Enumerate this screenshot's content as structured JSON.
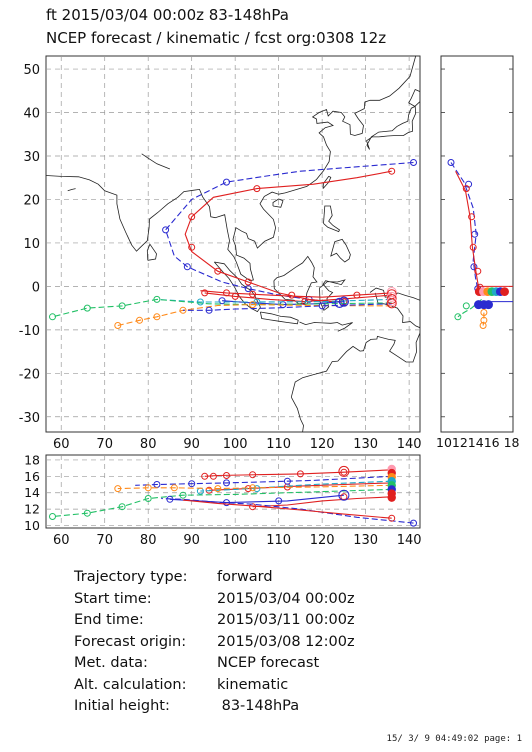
{
  "header": {
    "line1": "ft 2015/03/04 00:00z  83-148hPa",
    "line2": "NCEP forecast / kinematic / fcst org:0308 12z"
  },
  "axes": {
    "map_lon_ticks": [
      60,
      70,
      80,
      90,
      100,
      110,
      120,
      130,
      140
    ],
    "map_lat_ticks": [
      50,
      40,
      30,
      20,
      10,
      0,
      -10,
      -20,
      -30
    ],
    "side_ticks_label": "10121416 18",
    "pressure_ticks": [
      18,
      16,
      14,
      12,
      10
    ]
  },
  "info": [
    {
      "key": "Trajectory type:",
      "value": "forward"
    },
    {
      "key": "Start time:",
      "value": "2015/03/04 00:00z"
    },
    {
      "key": "End time:",
      "value": "2015/03/11 00:00z"
    },
    {
      "key": "Forecast origin:",
      "value": "2015/03/08 12:00z"
    },
    {
      "key": "Met. data:",
      "value": "NCEP forecast"
    },
    {
      "key": "Alt. calculation:",
      "value": "kinematic"
    },
    {
      "key": "Initial height:",
      "value": " 83-148hPa"
    }
  ],
  "footer": "15/ 3/ 9 04:49:02 page: 1",
  "colors": {
    "blue": "#2a2ad0",
    "red": "#e02020",
    "green": "#22c066",
    "orange": "#ff8a1a",
    "cyan": "#20a8c8",
    "pink": "#ff9ab0",
    "grid": "#9a9a9a",
    "coast": "#222222"
  },
  "trajectories": [
    {
      "id": "blue-north",
      "color": "blue",
      "style": "dash",
      "points": [
        [
          141,
          28.5
        ],
        [
          128,
          27.5
        ],
        [
          115,
          26.5
        ],
        [
          108,
          25.5
        ],
        [
          98,
          24
        ],
        [
          90,
          20
        ],
        [
          84,
          13
        ],
        [
          86,
          7
        ],
        [
          89,
          4.5
        ],
        [
          97,
          1
        ],
        [
          103,
          -0.5
        ],
        [
          110,
          -2
        ],
        [
          117,
          -3
        ],
        [
          122,
          -3.5
        ],
        [
          125,
          -3.5
        ]
      ],
      "markers": [
        [
          141,
          28.5
        ],
        [
          98,
          24
        ],
        [
          84,
          13
        ],
        [
          89,
          4.5
        ],
        [
          103,
          -0.5
        ],
        [
          117,
          -3
        ],
        [
          125,
          -3.5
        ]
      ]
    },
    {
      "id": "red-north",
      "color": "red",
      "style": "solid",
      "points": [
        [
          136,
          26.5
        ],
        [
          128,
          25
        ],
        [
          118,
          23.5
        ],
        [
          105,
          22.5
        ],
        [
          95,
          20.5
        ],
        [
          90,
          16
        ],
        [
          88.5,
          12
        ],
        [
          90,
          8
        ],
        [
          96,
          3.5
        ],
        [
          103,
          1
        ],
        [
          110,
          -1.5
        ],
        [
          117,
          -3
        ],
        [
          122,
          -3.5
        ],
        [
          125,
          -3.5
        ]
      ],
      "markers": [
        [
          136,
          26.5
        ],
        [
          105,
          22.5
        ],
        [
          90,
          16
        ],
        [
          90,
          9
        ],
        [
          96,
          3.5
        ],
        [
          103,
          1
        ],
        [
          113,
          -2
        ],
        [
          125,
          -3.5
        ]
      ]
    },
    {
      "id": "blue-low",
      "color": "blue",
      "style": "solid",
      "points": [
        [
          125,
          -3.5
        ],
        [
          118,
          -4
        ],
        [
          111,
          -4.2
        ],
        [
          104,
          -3.8
        ],
        [
          97,
          -3.3
        ]
      ],
      "markers": [
        [
          111,
          -4.2
        ],
        [
          97,
          -3.3
        ]
      ]
    },
    {
      "id": "red-low",
      "color": "red",
      "style": "solid",
      "points": [
        [
          136,
          -2
        ],
        [
          126,
          -2.8
        ],
        [
          116,
          -3.5
        ],
        [
          108,
          -3
        ],
        [
          100,
          -2.3
        ],
        [
          93,
          -1.5
        ]
      ],
      "markers": [
        [
          116,
          -3.5
        ],
        [
          100,
          -2.3
        ],
        [
          93,
          -1.5
        ]
      ]
    },
    {
      "id": "cyan",
      "color": "cyan",
      "style": "dash",
      "points": [
        [
          136,
          -3
        ],
        [
          120,
          -3.5
        ],
        [
          105,
          -3.6
        ],
        [
          92,
          -3.6
        ],
        [
          82,
          -3
        ]
      ],
      "markers": [
        [
          105,
          -3.6
        ],
        [
          92,
          -3.6
        ]
      ]
    },
    {
      "id": "green",
      "color": "green",
      "style": "dash",
      "points": [
        [
          136,
          -3.8
        ],
        [
          120,
          -4
        ],
        [
          104,
          -4.2
        ],
        [
          94,
          -4
        ],
        [
          88,
          -3.5
        ],
        [
          82,
          -3
        ],
        [
          74,
          -4.5
        ],
        [
          66,
          -5
        ],
        [
          58,
          -7
        ]
      ],
      "markers": [
        [
          82,
          -3
        ],
        [
          74,
          -4.5
        ],
        [
          66,
          -5
        ],
        [
          58,
          -7
        ]
      ]
    },
    {
      "id": "orange",
      "color": "orange",
      "style": "dash",
      "points": [
        [
          136,
          -4.5
        ],
        [
          118,
          -4.4
        ],
        [
          104,
          -4.2
        ],
        [
          96,
          -4.4
        ],
        [
          88,
          -5.5
        ],
        [
          82,
          -7
        ],
        [
          78,
          -7.8
        ],
        [
          73,
          -9
        ]
      ],
      "markers": [
        [
          104,
          -4.2
        ],
        [
          88,
          -5.5
        ],
        [
          82,
          -7
        ],
        [
          78,
          -7.8
        ],
        [
          73,
          -9
        ]
      ]
    },
    {
      "id": "blue-lat",
      "color": "blue",
      "style": "dash",
      "points": [
        [
          136,
          -4
        ],
        [
          120,
          -4.5
        ],
        [
          108,
          -5
        ],
        [
          100,
          -5.2
        ],
        [
          94,
          -5.5
        ],
        [
          88,
          -5.5
        ]
      ],
      "markers": [
        [
          120,
          -4.5
        ],
        [
          94,
          -5.5
        ]
      ]
    },
    {
      "id": "red-cluster",
      "color": "red",
      "style": "solid",
      "points": [
        [
          136,
          -1.5
        ],
        [
          128,
          -2
        ],
        [
          120,
          -2.5
        ],
        [
          112,
          -2.2
        ],
        [
          104,
          -1.8
        ],
        [
          98,
          -1.5
        ],
        [
          92,
          -1
        ]
      ],
      "markers": [
        [
          128,
          -2
        ],
        [
          104,
          -1.8
        ],
        [
          98,
          -1.5
        ]
      ]
    }
  ],
  "pressure_series": [
    {
      "color": "red",
      "style": "solid",
      "points": [
        [
          136,
          16.8
        ],
        [
          125,
          16.5
        ],
        [
          115,
          16.3
        ],
        [
          105,
          16.2
        ],
        [
          96,
          16.1
        ],
        [
          93,
          16
        ]
      ],
      "markers": [
        [
          125,
          16.5
        ],
        [
          115,
          16.3
        ],
        [
          104,
          16.2
        ],
        [
          98,
          16.1
        ],
        [
          95,
          16
        ],
        [
          93,
          16
        ]
      ]
    },
    {
      "color": "red",
      "style": "solid",
      "points": [
        [
          136,
          15.2
        ],
        [
          125,
          15
        ],
        [
          114,
          14.8
        ],
        [
          103,
          14.5
        ],
        [
          94,
          14.3
        ]
      ],
      "markers": [
        [
          112,
          14.7
        ],
        [
          103,
          14.5
        ],
        [
          94,
          14.3
        ]
      ]
    },
    {
      "color": "blue",
      "style": "dash",
      "points": [
        [
          136,
          16
        ],
        [
          118,
          15.5
        ],
        [
          105,
          15.3
        ],
        [
          98,
          15.2
        ],
        [
          90,
          15.1
        ],
        [
          82,
          15
        ],
        [
          77,
          14.9
        ]
      ],
      "markers": [
        [
          112,
          15.4
        ],
        [
          98,
          15.2
        ],
        [
          90,
          15.1
        ],
        [
          82,
          15
        ]
      ]
    },
    {
      "color": "cyan",
      "style": "dash",
      "points": [
        [
          136,
          15.4
        ],
        [
          118,
          15
        ],
        [
          100,
          14.4
        ],
        [
          92,
          14.2
        ]
      ],
      "markers": [
        [
          105,
          14.5
        ],
        [
          92,
          14.2
        ]
      ]
    },
    {
      "color": "orange",
      "style": "dash",
      "points": [
        [
          136,
          14.9
        ],
        [
          118,
          14.7
        ],
        [
          104,
          14.6
        ],
        [
          96,
          14.5
        ],
        [
          86,
          14.6
        ],
        [
          80,
          14.6
        ],
        [
          73,
          14.5
        ]
      ],
      "markers": [
        [
          104,
          14.6
        ],
        [
          96,
          14.5
        ],
        [
          86,
          14.6
        ],
        [
          80,
          14.6
        ],
        [
          73,
          14.5
        ]
      ]
    },
    {
      "color": "green",
      "style": "dash",
      "points": [
        [
          136,
          14.4
        ],
        [
          118,
          14.1
        ],
        [
          100,
          13.8
        ],
        [
          88,
          13.7
        ],
        [
          80,
          13.3
        ],
        [
          74,
          12.3
        ],
        [
          66,
          11.5
        ],
        [
          58,
          11.1
        ]
      ],
      "markers": [
        [
          88,
          13.7
        ],
        [
          80,
          13.3
        ],
        [
          74,
          12.3
        ],
        [
          66,
          11.5
        ],
        [
          58,
          11.1
        ]
      ]
    },
    {
      "color": "blue",
      "style": "solid",
      "points": [
        [
          125,
          13.7
        ],
        [
          112,
          13
        ],
        [
          98,
          12.8
        ],
        [
          85,
          13.2
        ]
      ],
      "markers": [
        [
          110,
          13
        ],
        [
          98,
          12.8
        ],
        [
          85,
          13.2
        ]
      ]
    },
    {
      "color": "red",
      "style": "solid",
      "points": [
        [
          136,
          13.5
        ],
        [
          128,
          13.3
        ],
        [
          120,
          13
        ],
        [
          112,
          12.5
        ],
        [
          104,
          12.3
        ]
      ],
      "markers": [
        [
          125,
          13.5
        ],
        [
          104,
          12.3
        ]
      ]
    },
    {
      "color": "blue",
      "style": "dash",
      "points": [
        [
          141,
          10.3
        ],
        [
          128,
          11
        ],
        [
          115,
          12
        ],
        [
          104,
          12.6
        ],
        [
          97,
          12.8
        ],
        [
          88,
          13.2
        ],
        [
          83,
          13.3
        ]
      ],
      "markers": [
        [
          141,
          10.3
        ]
      ]
    },
    {
      "color": "red",
      "style": "solid",
      "points": [
        [
          136,
          10.9
        ],
        [
          125,
          11.4
        ],
        [
          115,
          11.9
        ],
        [
          104,
          12.4
        ],
        [
          96,
          12.7
        ],
        [
          88,
          13.1
        ]
      ],
      "markers": [
        [
          136,
          10.9
        ]
      ]
    }
  ],
  "side_series": [
    {
      "color": "blue",
      "style": "dash",
      "points": [
        [
          10.3,
          28.5
        ],
        [
          12,
          24
        ],
        [
          13.2,
          18
        ],
        [
          13.6,
          12
        ],
        [
          13.2,
          6
        ],
        [
          13.5,
          2
        ],
        [
          13.9,
          -1.5
        ]
      ],
      "markers": [
        [
          10.3,
          28.5
        ],
        [
          12.6,
          23.5
        ],
        [
          13.4,
          12
        ],
        [
          13.3,
          4.5
        ],
        [
          13.8,
          -0.5
        ]
      ]
    },
    {
      "color": "red",
      "style": "solid",
      "points": [
        [
          10.9,
          26.5
        ],
        [
          12.2,
          22
        ],
        [
          12.8,
          16
        ],
        [
          13.1,
          9
        ],
        [
          13.6,
          3
        ],
        [
          14,
          -1.2
        ]
      ],
      "markers": [
        [
          12.3,
          22.5
        ],
        [
          13,
          16
        ],
        [
          13.2,
          9
        ],
        [
          13.8,
          3.5
        ],
        [
          14.1,
          -0.2
        ]
      ]
    },
    {
      "color": "green",
      "style": "dash",
      "points": [
        [
          14.3,
          -3
        ],
        [
          13,
          -5
        ],
        [
          12,
          -6
        ],
        [
          11.2,
          -7
        ]
      ],
      "markers": [
        [
          12.3,
          -4.5
        ],
        [
          11.2,
          -7
        ]
      ]
    },
    {
      "color": "orange",
      "style": "dash",
      "points": [
        [
          14.8,
          -4
        ],
        [
          14.6,
          -6
        ],
        [
          14.6,
          -7.8
        ],
        [
          14.5,
          -9
        ]
      ],
      "markers": [
        [
          14.6,
          -6
        ],
        [
          14.6,
          -7.8
        ],
        [
          14.5,
          -9
        ]
      ]
    }
  ]
}
